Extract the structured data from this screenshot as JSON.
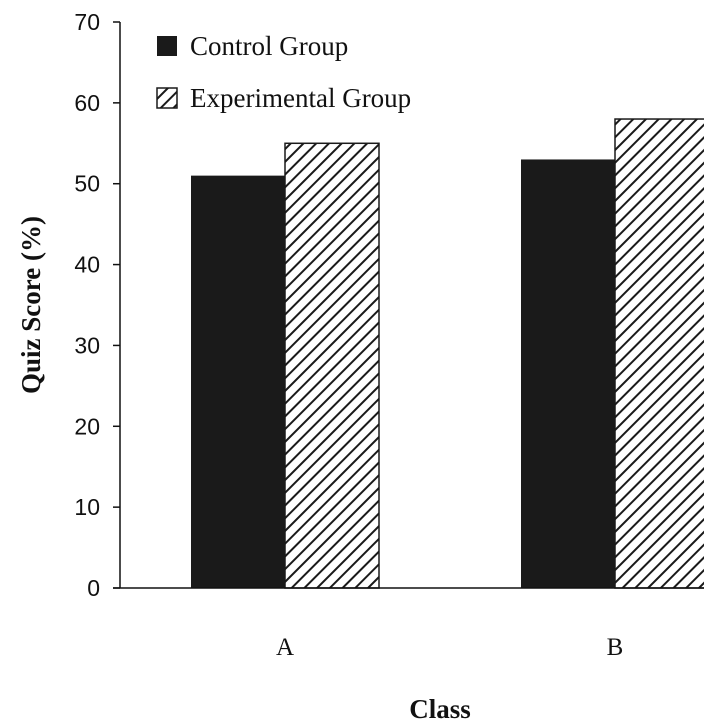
{
  "chart_data": {
    "type": "bar",
    "title": "",
    "xlabel": "Class",
    "ylabel": "Quiz Score (%)",
    "categories": [
      "A",
      "B"
    ],
    "ylim": [
      0,
      70
    ],
    "yticks": [
      0,
      10,
      20,
      30,
      40,
      50,
      60,
      70
    ],
    "grid": false,
    "legend_position": "top-left",
    "series": [
      {
        "name": "Control Group",
        "values": [
          51,
          53
        ],
        "color": "#1a1a1a",
        "pattern": "solid"
      },
      {
        "name": "Experimental Group",
        "values": [
          55,
          58
        ],
        "color": "#1a1a1a",
        "pattern": "diagonal-hatch"
      }
    ]
  }
}
